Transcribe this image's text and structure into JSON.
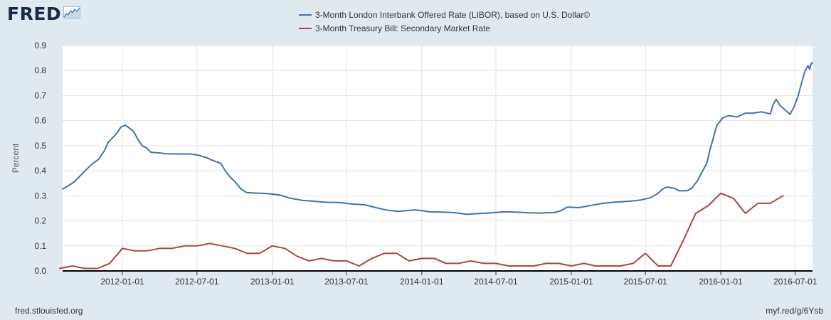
{
  "header": {
    "brand": "FRED",
    "brand_icon": "trend-line-chart-icon"
  },
  "footer": {
    "source": "fred.stlouisfed.org",
    "short_link": "myf.red/g/6Ysb"
  },
  "chart_data": {
    "type": "line",
    "ylabel": "Percent",
    "ylim": [
      0,
      0.9
    ],
    "yticks": [
      0.0,
      0.1,
      0.2,
      0.3,
      0.4,
      0.5,
      0.6,
      0.7,
      0.8,
      0.9
    ],
    "ytick_labels": [
      "0.0",
      "0.1",
      "0.2",
      "0.3",
      "0.4",
      "0.5",
      "0.6",
      "0.7",
      "0.8",
      "0.9"
    ],
    "xlim": [
      "2011-08-08",
      "2016-08-12"
    ],
    "xticks": [
      "2012-01-01",
      "2012-07-01",
      "2013-01-01",
      "2013-07-01",
      "2014-01-01",
      "2014-07-01",
      "2015-01-01",
      "2015-07-01",
      "2016-01-01",
      "2016-07-01"
    ],
    "grid": true,
    "legend_position": "top-center",
    "series": [
      {
        "name": "3-Month London Interbank Offered Rate (LIBOR), based on U.S. Dollar©",
        "color": "#4572a7",
        "points": [
          [
            "2011-08-08",
            0.327
          ],
          [
            "2011-08-22",
            0.34
          ],
          [
            "2011-09-06",
            0.356
          ],
          [
            "2011-09-20",
            0.38
          ],
          [
            "2011-10-05",
            0.405
          ],
          [
            "2011-10-20",
            0.428
          ],
          [
            "2011-11-04",
            0.446
          ],
          [
            "2011-11-18",
            0.48
          ],
          [
            "2011-11-28",
            0.515
          ],
          [
            "2011-12-10",
            0.535
          ],
          [
            "2011-12-20",
            0.553
          ],
          [
            "2011-12-28",
            0.574
          ],
          [
            "2012-01-08",
            0.582
          ],
          [
            "2012-01-15",
            0.574
          ],
          [
            "2012-01-28",
            0.557
          ],
          [
            "2012-02-08",
            0.525
          ],
          [
            "2012-02-18",
            0.5
          ],
          [
            "2012-03-01",
            0.49
          ],
          [
            "2012-03-10",
            0.474
          ],
          [
            "2012-04-01",
            0.471
          ],
          [
            "2012-04-18",
            0.468
          ],
          [
            "2012-05-15",
            0.467
          ],
          [
            "2012-06-15",
            0.467
          ],
          [
            "2012-07-05",
            0.462
          ],
          [
            "2012-07-25",
            0.452
          ],
          [
            "2012-08-10",
            0.44
          ],
          [
            "2012-08-28",
            0.43
          ],
          [
            "2012-09-08",
            0.4
          ],
          [
            "2012-09-20",
            0.375
          ],
          [
            "2012-10-03",
            0.355
          ],
          [
            "2012-10-15",
            0.33
          ],
          [
            "2012-10-30",
            0.313
          ],
          [
            "2012-11-20",
            0.311
          ],
          [
            "2012-12-20",
            0.309
          ],
          [
            "2013-01-20",
            0.303
          ],
          [
            "2013-02-15",
            0.29
          ],
          [
            "2013-03-15",
            0.282
          ],
          [
            "2013-04-15",
            0.278
          ],
          [
            "2013-05-15",
            0.274
          ],
          [
            "2013-06-15",
            0.273
          ],
          [
            "2013-07-15",
            0.267
          ],
          [
            "2013-08-15",
            0.264
          ],
          [
            "2013-09-10",
            0.253
          ],
          [
            "2013-10-10",
            0.242
          ],
          [
            "2013-11-05",
            0.238
          ],
          [
            "2013-12-15",
            0.244
          ],
          [
            "2014-01-05",
            0.24
          ],
          [
            "2014-01-20",
            0.236
          ],
          [
            "2014-02-20",
            0.235
          ],
          [
            "2014-03-20",
            0.233
          ],
          [
            "2014-04-20",
            0.226
          ],
          [
            "2014-05-20",
            0.229
          ],
          [
            "2014-06-20",
            0.232
          ],
          [
            "2014-07-20",
            0.236
          ],
          [
            "2014-08-20",
            0.235
          ],
          [
            "2014-09-20",
            0.232
          ],
          [
            "2014-10-20",
            0.231
          ],
          [
            "2014-11-20",
            0.233
          ],
          [
            "2014-12-05",
            0.239
          ],
          [
            "2014-12-22",
            0.255
          ],
          [
            "2015-01-20",
            0.253
          ],
          [
            "2015-02-20",
            0.262
          ],
          [
            "2015-03-20",
            0.27
          ],
          [
            "2015-04-20",
            0.275
          ],
          [
            "2015-05-20",
            0.278
          ],
          [
            "2015-06-20",
            0.283
          ],
          [
            "2015-07-15",
            0.293
          ],
          [
            "2015-08-01",
            0.31
          ],
          [
            "2015-08-10",
            0.325
          ],
          [
            "2015-08-22",
            0.335
          ],
          [
            "2015-09-10",
            0.33
          ],
          [
            "2015-09-22",
            0.32
          ],
          [
            "2015-10-10",
            0.32
          ],
          [
            "2015-10-22",
            0.33
          ],
          [
            "2015-11-05",
            0.36
          ],
          [
            "2015-11-18",
            0.4
          ],
          [
            "2015-11-28",
            0.43
          ],
          [
            "2015-12-05",
            0.48
          ],
          [
            "2015-12-12",
            0.52
          ],
          [
            "2015-12-22",
            0.58
          ],
          [
            "2016-01-05",
            0.61
          ],
          [
            "2016-01-20",
            0.62
          ],
          [
            "2016-02-10",
            0.615
          ],
          [
            "2016-03-01",
            0.63
          ],
          [
            "2016-03-20",
            0.63
          ],
          [
            "2016-04-10",
            0.635
          ],
          [
            "2016-05-01",
            0.627
          ],
          [
            "2016-05-08",
            0.665
          ],
          [
            "2016-05-15",
            0.685
          ],
          [
            "2016-05-25",
            0.66
          ],
          [
            "2016-06-08",
            0.64
          ],
          [
            "2016-06-18",
            0.625
          ],
          [
            "2016-06-28",
            0.655
          ],
          [
            "2016-07-08",
            0.7
          ],
          [
            "2016-07-18",
            0.76
          ],
          [
            "2016-07-25",
            0.8
          ],
          [
            "2016-08-01",
            0.82
          ],
          [
            "2016-08-05",
            0.805
          ],
          [
            "2016-08-08",
            0.825
          ],
          [
            "2016-08-12",
            0.832
          ]
        ]
      },
      {
        "name": "3-Month Treasury Bill: Secondary Market Rate",
        "color": "#aa4643",
        "points": [
          [
            "2011-08-01",
            0.01
          ],
          [
            "2011-09-01",
            0.02
          ],
          [
            "2011-10-01",
            0.01
          ],
          [
            "2011-11-01",
            0.01
          ],
          [
            "2011-12-01",
            0.03
          ],
          [
            "2012-01-01",
            0.09
          ],
          [
            "2012-02-01",
            0.08
          ],
          [
            "2012-03-01",
            0.08
          ],
          [
            "2012-04-01",
            0.09
          ],
          [
            "2012-05-01",
            0.09
          ],
          [
            "2012-06-01",
            0.1
          ],
          [
            "2012-07-01",
            0.1
          ],
          [
            "2012-08-01",
            0.11
          ],
          [
            "2012-09-01",
            0.1
          ],
          [
            "2012-10-01",
            0.09
          ],
          [
            "2012-11-01",
            0.07
          ],
          [
            "2012-12-01",
            0.07
          ],
          [
            "2013-01-01",
            0.1
          ],
          [
            "2013-02-01",
            0.09
          ],
          [
            "2013-03-01",
            0.06
          ],
          [
            "2013-04-01",
            0.04
          ],
          [
            "2013-05-01",
            0.05
          ],
          [
            "2013-06-01",
            0.04
          ],
          [
            "2013-07-01",
            0.04
          ],
          [
            "2013-08-01",
            0.02
          ],
          [
            "2013-09-01",
            0.05
          ],
          [
            "2013-10-01",
            0.07
          ],
          [
            "2013-11-01",
            0.07
          ],
          [
            "2013-12-01",
            0.04
          ],
          [
            "2014-01-01",
            0.05
          ],
          [
            "2014-02-01",
            0.05
          ],
          [
            "2014-03-01",
            0.03
          ],
          [
            "2014-04-01",
            0.03
          ],
          [
            "2014-05-01",
            0.04
          ],
          [
            "2014-06-01",
            0.03
          ],
          [
            "2014-07-01",
            0.03
          ],
          [
            "2014-08-01",
            0.02
          ],
          [
            "2014-09-01",
            0.02
          ],
          [
            "2014-10-01",
            0.02
          ],
          [
            "2014-11-01",
            0.03
          ],
          [
            "2014-12-01",
            0.03
          ],
          [
            "2015-01-01",
            0.02
          ],
          [
            "2015-02-01",
            0.03
          ],
          [
            "2015-03-01",
            0.02
          ],
          [
            "2015-04-01",
            0.02
          ],
          [
            "2015-05-01",
            0.02
          ],
          [
            "2015-06-01",
            0.03
          ],
          [
            "2015-07-01",
            0.07
          ],
          [
            "2015-08-01",
            0.02
          ],
          [
            "2015-09-01",
            0.02
          ],
          [
            "2015-10-01",
            0.12
          ],
          [
            "2015-11-01",
            0.23
          ],
          [
            "2015-12-01",
            0.26
          ],
          [
            "2016-01-01",
            0.31
          ],
          [
            "2016-02-01",
            0.29
          ],
          [
            "2016-03-01",
            0.23
          ],
          [
            "2016-04-01",
            0.27
          ],
          [
            "2016-05-01",
            0.27
          ],
          [
            "2016-06-01",
            0.3
          ]
        ]
      }
    ]
  }
}
